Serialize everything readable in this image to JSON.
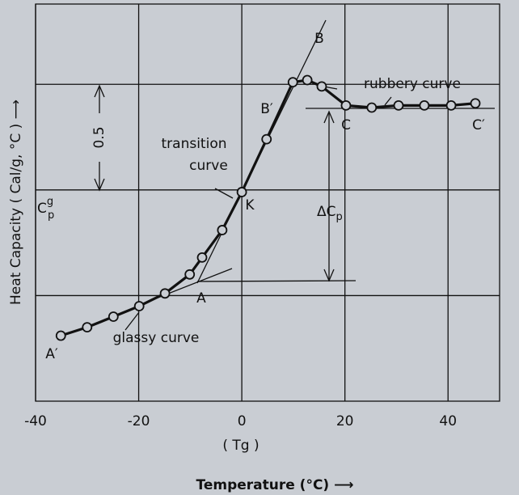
{
  "chart_data": {
    "type": "line",
    "xlabel": "Temperature  (°C)  ⟶",
    "ylabel": "Heat Capacity ( Cal/g,  °C )  ⟶",
    "x_sublabel": "( Tg )",
    "xlim": [
      -40,
      50
    ],
    "xticks": [
      -40,
      -20,
      0,
      20,
      40
    ],
    "ylim": [
      0,
      1.88
    ],
    "ygrid": [
      0.5,
      1.0,
      1.5
    ],
    "grid": true,
    "color": "#111111",
    "x": [
      -35.1,
      -30.0,
      -24.9,
      -19.9,
      -14.9,
      -10.1,
      -7.7,
      -3.8,
      0,
      4.8,
      9.9,
      12.7,
      15.5,
      20.2,
      25.2,
      30.4,
      35.4,
      40.6,
      45.3
    ],
    "values": [
      0.31,
      0.35,
      0.4,
      0.45,
      0.51,
      0.6,
      0.68,
      0.81,
      0.99,
      1.24,
      1.51,
      1.52,
      1.49,
      1.4,
      1.39,
      1.4,
      1.4,
      1.4,
      1.41
    ],
    "annotations": {
      "B": "B",
      "B_prime": "B′",
      "K": "K",
      "A": "A",
      "A_prime": "A′",
      "C": "C",
      "C_prime": "C′",
      "transition_1": "transition",
      "transition_2": "curve",
      "rubbery": "rubbery curve",
      "glassy": "glassy curve",
      "half": "0.5",
      "dcp_base": "ΔC",
      "dcp_sub": "p",
      "cpg_base": "C",
      "cpg_sup": "g",
      "cpg_sub": "p"
    }
  }
}
